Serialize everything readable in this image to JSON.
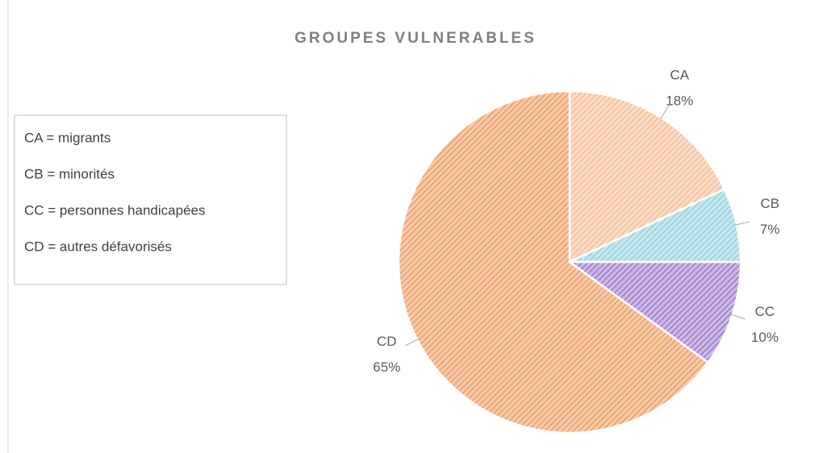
{
  "chart_data": {
    "type": "pie",
    "title": "GROUPES VULNERABLES",
    "categories": [
      "CA",
      "CB",
      "CC",
      "CD"
    ],
    "values": [
      18,
      7,
      10,
      65
    ],
    "value_labels": [
      "18%",
      "7%",
      "10%",
      "65%"
    ],
    "colors": [
      "#f4b183",
      "#7fcbd9",
      "#8e63c4",
      "#ed8b46"
    ],
    "annotations": [
      "CA = migrants",
      "CB = minorités",
      "CC = personnes handicapées",
      "CD = autres défavorisés"
    ]
  }
}
